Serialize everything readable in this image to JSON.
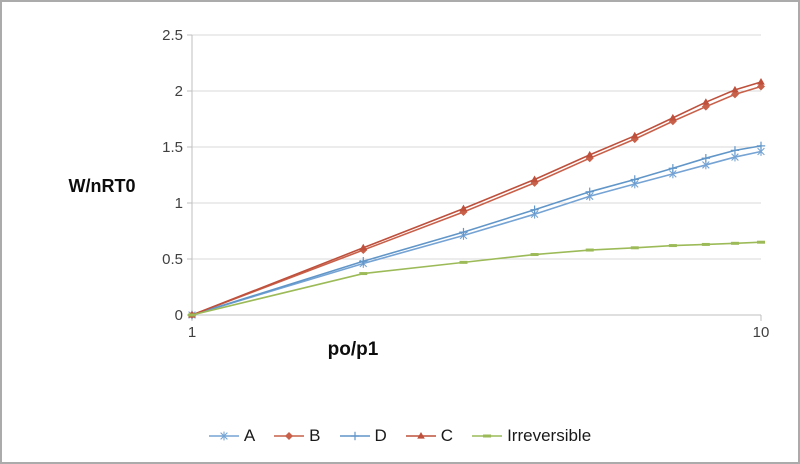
{
  "figure": {
    "background": "#FFFFFF",
    "border_color": "#ABABAB"
  },
  "chart_data": {
    "type": "line",
    "xlabel": "po/p1",
    "ylabel": "W/nRT0",
    "x_scale": "log",
    "xlim": [
      1,
      10
    ],
    "ylim": [
      0,
      2.5
    ],
    "xticks": [
      1,
      10
    ],
    "yticks": [
      0,
      0.5,
      1,
      1.5,
      2,
      2.5
    ],
    "grid": "horizontal",
    "legend_position": "bottom",
    "x": [
      1,
      2,
      3,
      4,
      5,
      6,
      7,
      8,
      9,
      10
    ],
    "series": [
      {
        "name": "A",
        "color": "#75A3D4",
        "marker": "star",
        "values": [
          0,
          0.46,
          0.71,
          0.9,
          1.06,
          1.17,
          1.26,
          1.34,
          1.41,
          1.46
        ]
      },
      {
        "name": "B",
        "color": "#C8604A",
        "marker": "diamond",
        "values": [
          0,
          0.58,
          0.92,
          1.18,
          1.4,
          1.57,
          1.73,
          1.86,
          1.97,
          2.04
        ]
      },
      {
        "name": "D",
        "color": "#6196C9",
        "marker": "plus",
        "values": [
          0,
          0.48,
          0.74,
          0.94,
          1.1,
          1.21,
          1.31,
          1.4,
          1.47,
          1.51
        ]
      },
      {
        "name": "C",
        "color": "#BE503C",
        "marker": "triangle",
        "values": [
          0,
          0.6,
          0.95,
          1.21,
          1.43,
          1.6,
          1.76,
          1.9,
          2.01,
          2.08
        ]
      },
      {
        "name": "Irreversible",
        "color": "#9CBB58",
        "marker": "dash",
        "values": [
          0,
          0.37,
          0.47,
          0.54,
          0.58,
          0.6,
          0.62,
          0.63,
          0.64,
          0.65
        ]
      }
    ],
    "colors": {
      "gridline": "#D9D9D9",
      "axis": "#BFBFBF",
      "tick_text": "#404040"
    }
  }
}
